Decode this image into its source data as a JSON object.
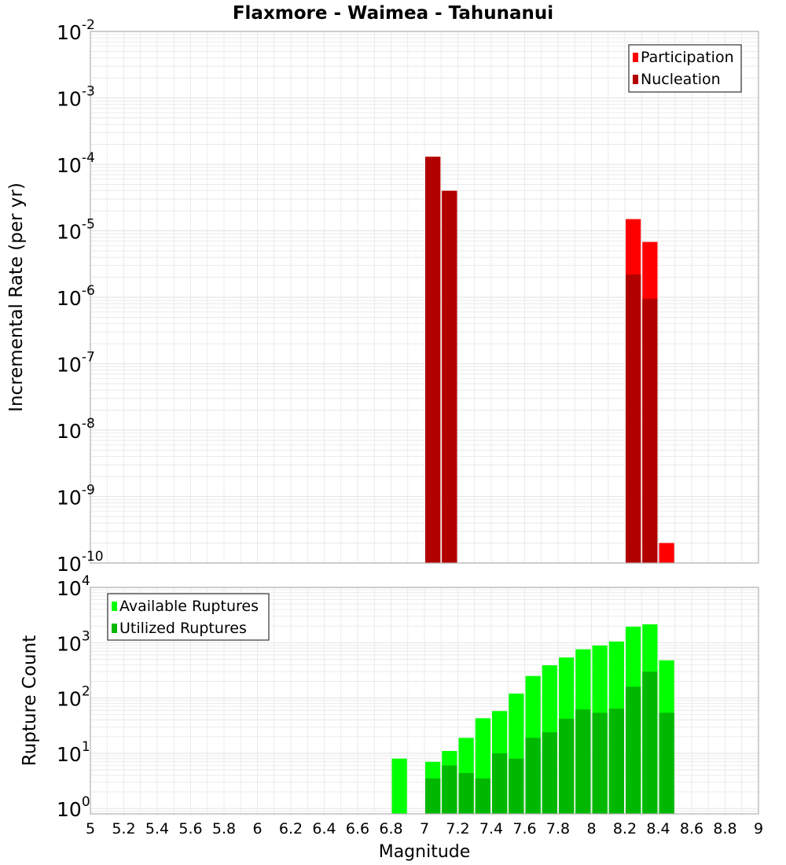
{
  "title": "Flaxmore - Waimea - Tahunanui",
  "xlabel": "Magnitude",
  "xlim": [
    5,
    9
  ],
  "x_ticks": [
    "5",
    "5.2",
    "5.4",
    "5.6",
    "5.8",
    "6",
    "6.2",
    "6.4",
    "6.6",
    "6.8",
    "7",
    "7.2",
    "7.4",
    "7.6",
    "7.8",
    "8",
    "8.2",
    "8.4",
    "8.6",
    "8.8",
    "9"
  ],
  "colors": {
    "participation": "#ff0000",
    "nucleation": "#b20000",
    "available": "#00ff00",
    "utilized": "#00b800",
    "grid": "#e6e6e6",
    "frame": "#b0b0b0"
  },
  "chart_data": [
    {
      "type": "bar",
      "panel": "top",
      "ylabel": "Incremental Rate (per yr)",
      "yscale": "log",
      "ylim": [
        1e-10,
        0.01
      ],
      "y_ticks": [
        {
          "base": "10",
          "exp": "-10"
        },
        {
          "base": "10",
          "exp": "-9"
        },
        {
          "base": "10",
          "exp": "-8"
        },
        {
          "base": "10",
          "exp": "-7"
        },
        {
          "base": "10",
          "exp": "-6"
        },
        {
          "base": "10",
          "exp": "-5"
        },
        {
          "base": "10",
          "exp": "-4"
        },
        {
          "base": "10",
          "exp": "-3"
        },
        {
          "base": "10",
          "exp": "-2"
        }
      ],
      "bar_width": 0.1,
      "legend_position": "top-right",
      "series": [
        {
          "name": "Participation",
          "x": [
            7.05,
            7.15,
            8.25,
            8.35,
            8.45
          ],
          "values": [
            0.00013,
            4e-05,
            1.5e-05,
            6.8e-06,
            2e-10
          ]
        },
        {
          "name": "Nucleation",
          "x": [
            7.05,
            7.15,
            8.25,
            8.35
          ],
          "values": [
            0.00013,
            4e-05,
            2.2e-06,
            9.5e-07
          ]
        }
      ]
    },
    {
      "type": "bar",
      "panel": "bottom",
      "ylabel": "Rupture Count",
      "yscale": "log",
      "ylim": [
        0.8,
        10000
      ],
      "y_ticks": [
        {
          "base": "10",
          "exp": "0"
        },
        {
          "base": "10",
          "exp": "1"
        },
        {
          "base": "10",
          "exp": "2"
        },
        {
          "base": "10",
          "exp": "3"
        },
        {
          "base": "10",
          "exp": "4"
        }
      ],
      "bar_width": 0.1,
      "legend_position": "top-left",
      "series": [
        {
          "name": "Available Ruptures",
          "x": [
            6.85,
            7.05,
            7.15,
            7.25,
            7.35,
            7.45,
            7.55,
            7.65,
            7.75,
            7.85,
            7.95,
            8.05,
            8.15,
            8.25,
            8.35,
            8.45
          ],
          "values": [
            8,
            7,
            11,
            19,
            43,
            58,
            120,
            250,
            390,
            540,
            760,
            890,
            1050,
            1950,
            2150,
            480
          ]
        },
        {
          "name": "Utilized Ruptures",
          "x": [
            7.05,
            7.15,
            7.25,
            7.35,
            7.45,
            7.55,
            7.65,
            7.75,
            7.85,
            7.95,
            8.05,
            8.15,
            8.25,
            8.35,
            8.45
          ],
          "values": [
            3.5,
            6,
            4.4,
            3.5,
            10,
            8,
            19,
            24,
            42,
            62,
            54,
            64,
            160,
            300,
            54
          ]
        }
      ]
    }
  ]
}
